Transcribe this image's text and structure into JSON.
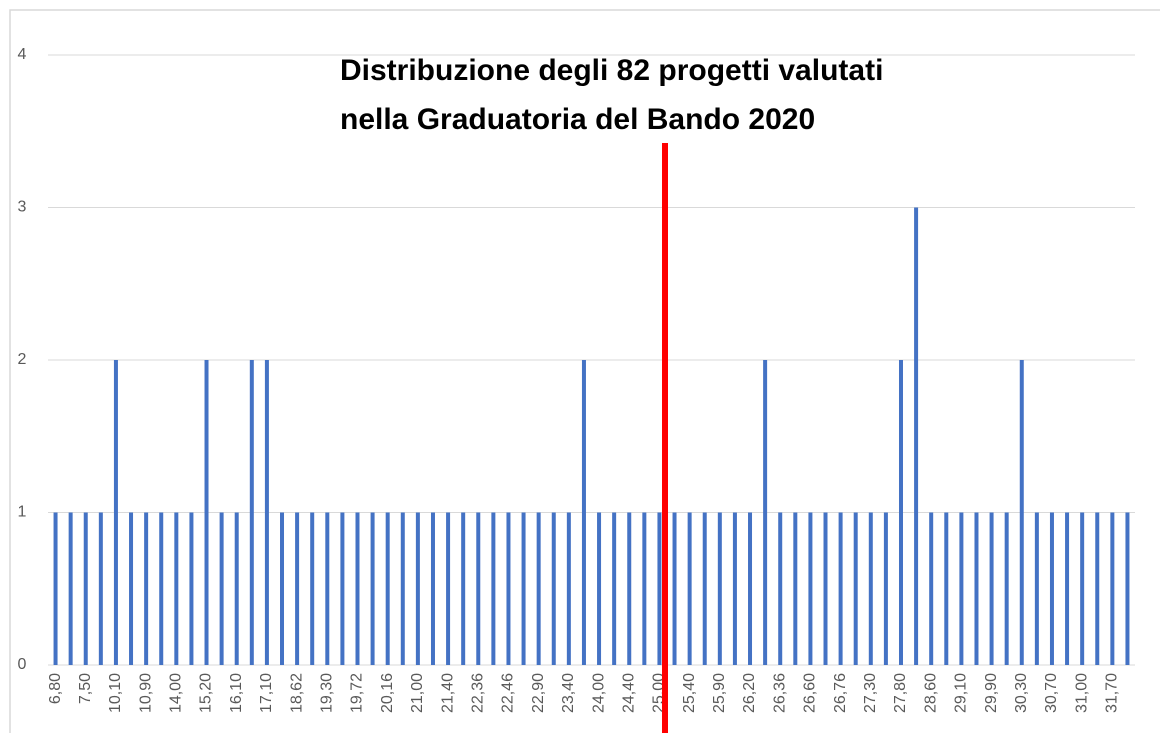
{
  "chart_data": {
    "type": "bar",
    "title": [
      "Distribuzione degli 82 progetti valutati",
      "nella Graduatoria del Bando 2020"
    ],
    "categories": [
      "6,80",
      null,
      "7,50",
      null,
      "10,10",
      null,
      "10,90",
      null,
      "14,00",
      null,
      "15,20",
      null,
      "16,10",
      null,
      "17,10",
      null,
      "18,62",
      null,
      "19,30",
      null,
      "19,72",
      null,
      "20,16",
      null,
      "21,00",
      null,
      "21,40",
      null,
      "22,36",
      null,
      "22,46",
      null,
      "22,90",
      null,
      "23,40",
      null,
      "24,00",
      null,
      "24,40",
      null,
      "25,00",
      null,
      "25,40",
      null,
      "25,90",
      null,
      "26,20",
      null,
      "26,36",
      null,
      "26,60",
      null,
      "26,76",
      null,
      "27,30",
      null,
      "27,80",
      null,
      "28,60",
      null,
      "29,10",
      null,
      "29,90",
      null,
      "30,30",
      null,
      "30,70",
      null,
      "31,00",
      null,
      "31,70",
      null
    ],
    "values": [
      1,
      1,
      1,
      1,
      2,
      1,
      1,
      1,
      1,
      1,
      2,
      1,
      1,
      2,
      2,
      1,
      1,
      1,
      1,
      1,
      1,
      1,
      1,
      1,
      1,
      1,
      1,
      1,
      1,
      1,
      1,
      1,
      1,
      1,
      1,
      2,
      1,
      1,
      1,
      1,
      1,
      1,
      1,
      1,
      1,
      1,
      1,
      2,
      1,
      1,
      1,
      1,
      1,
      1,
      1,
      1,
      2,
      3,
      1,
      1,
      1,
      1,
      1,
      1,
      2,
      1,
      1,
      1,
      1,
      1,
      1,
      1
    ],
    "color": "#4472c4",
    "ylim": [
      0,
      4
    ],
    "yticks": [
      0,
      1,
      2,
      3,
      4
    ],
    "grid": true
  }
}
